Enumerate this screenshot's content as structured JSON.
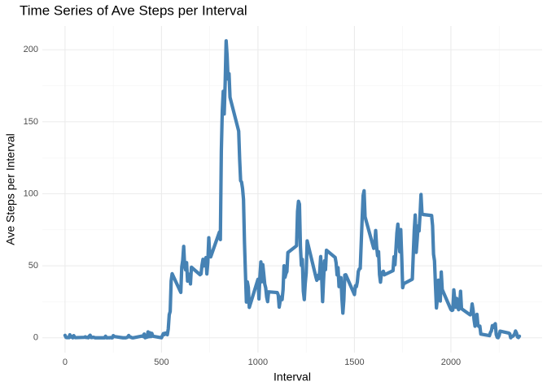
{
  "chart_data": {
    "type": "line",
    "title": "Time Series of Ave Steps per Interval",
    "xlabel": "Interval",
    "ylabel": "Ave Steps per Interval",
    "color": "#4682b4",
    "grid": true,
    "xlim": [
      -117.75,
      2472.75
    ],
    "ylim": [
      -10.3,
      216.5
    ],
    "xticks": [
      0,
      500,
      1000,
      1500,
      2000
    ],
    "yticks": [
      0,
      50,
      100,
      150,
      200
    ],
    "xminor": [
      250,
      750,
      1250,
      1750,
      2250
    ],
    "yminor": [
      25,
      75,
      125,
      175
    ],
    "x": [
      0,
      5,
      10,
      15,
      20,
      25,
      30,
      35,
      40,
      45,
      50,
      55,
      100,
      105,
      110,
      115,
      120,
      125,
      130,
      135,
      140,
      145,
      150,
      155,
      200,
      205,
      210,
      215,
      220,
      225,
      230,
      235,
      240,
      245,
      250,
      255,
      300,
      305,
      310,
      315,
      320,
      325,
      330,
      335,
      340,
      345,
      350,
      355,
      400,
      405,
      410,
      415,
      420,
      425,
      430,
      435,
      440,
      445,
      450,
      455,
      500,
      505,
      510,
      515,
      520,
      525,
      530,
      535,
      540,
      545,
      550,
      555,
      600,
      605,
      610,
      615,
      620,
      625,
      630,
      635,
      640,
      645,
      650,
      655,
      700,
      705,
      710,
      715,
      720,
      725,
      730,
      735,
      740,
      745,
      750,
      755,
      800,
      805,
      810,
      815,
      820,
      825,
      830,
      835,
      840,
      845,
      850,
      855,
      900,
      905,
      910,
      915,
      920,
      925,
      930,
      935,
      940,
      945,
      950,
      955,
      1000,
      1005,
      1010,
      1015,
      1020,
      1025,
      1030,
      1035,
      1040,
      1045,
      1050,
      1055,
      1100,
      1105,
      1110,
      1115,
      1120,
      1125,
      1130,
      1135,
      1140,
      1145,
      1150,
      1155,
      1200,
      1205,
      1210,
      1215,
      1220,
      1225,
      1230,
      1235,
      1240,
      1245,
      1250,
      1255,
      1300,
      1305,
      1310,
      1315,
      1320,
      1325,
      1330,
      1335,
      1340,
      1345,
      1350,
      1355,
      1400,
      1405,
      1410,
      1415,
      1420,
      1425,
      1430,
      1435,
      1440,
      1445,
      1450,
      1455,
      1500,
      1505,
      1510,
      1515,
      1520,
      1525,
      1530,
      1535,
      1540,
      1545,
      1550,
      1555,
      1600,
      1605,
      1610,
      1615,
      1620,
      1625,
      1630,
      1635,
      1640,
      1645,
      1650,
      1655,
      1700,
      1705,
      1710,
      1715,
      1720,
      1725,
      1730,
      1735,
      1740,
      1745,
      1750,
      1755,
      1800,
      1805,
      1810,
      1815,
      1820,
      1825,
      1830,
      1835,
      1840,
      1845,
      1850,
      1855,
      1900,
      1905,
      1910,
      1915,
      1920,
      1925,
      1930,
      1935,
      1940,
      1945,
      1950,
      1955,
      2000,
      2005,
      2010,
      2015,
      2020,
      2025,
      2030,
      2035,
      2040,
      2045,
      2050,
      2055,
      2100,
      2105,
      2110,
      2115,
      2120,
      2125,
      2130,
      2135,
      2140,
      2145,
      2150,
      2155,
      2200,
      2205,
      2210,
      2215,
      2220,
      2225,
      2230,
      2235,
      2240,
      2245,
      2250,
      2255,
      2300,
      2305,
      2310,
      2315,
      2320,
      2325,
      2330,
      2335,
      2340,
      2345,
      2350,
      2355
    ],
    "values": [
      1.7,
      0.3,
      0.1,
      0.2,
      0.1,
      2.1,
      0.5,
      0.9,
      0,
      1.5,
      0.3,
      0.1,
      0.3,
      0.7,
      0.2,
      0.3,
      0,
      1.1,
      1.8,
      0.2,
      0.2,
      0.4,
      0.3,
      0,
      0,
      0,
      1.1,
      0,
      0,
      0.1,
      0,
      0.2,
      0,
      0,
      1.5,
      0.9,
      0,
      0,
      0,
      0,
      0.2,
      0.6,
      1.6,
      0.6,
      0.5,
      0.1,
      0,
      0,
      1.2,
      0.9,
      2.6,
      0,
      0.3,
      0.4,
      4.1,
      0.7,
      3.5,
      0.8,
      3.1,
      1.1,
      0,
      1.6,
      3,
      2.2,
      3.3,
      3,
      2.1,
      6.1,
      16,
      18.3,
      39.5,
      44.5,
      31.5,
      49.3,
      53.8,
      63.5,
      50,
      47.1,
      52.2,
      39.3,
      44,
      44.2,
      37.4,
      49,
      43.8,
      44.4,
      50.5,
      54.5,
      49.9,
      51,
      55.7,
      44.3,
      52.3,
      69.5,
      57.8,
      56.2,
      73.4,
      68.2,
      129.4,
      157.5,
      171.2,
      155.4,
      177.3,
      206.2,
      195.9,
      179.6,
      183.4,
      167,
      143.5,
      124,
      109.1,
      108.1,
      103.7,
      96,
      66.2,
      45.2,
      24.8,
      38.8,
      35,
      21.1,
      40.6,
      27,
      42.4,
      52.7,
      38.9,
      50.8,
      44.3,
      37.4,
      34.7,
      28.3,
      25.1,
      31.9,
      31.4,
      29.7,
      21.3,
      25.5,
      28.4,
      26.5,
      33.4,
      50,
      42,
      44.6,
      46,
      59.2,
      63.9,
      87.7,
      94.8,
      92.8,
      63.4,
      50.2,
      54.5,
      32.4,
      26.5,
      37.7,
      45.1,
      67.3,
      42.3,
      39.9,
      43.3,
      41,
      46.2,
      56.4,
      42.8,
      25.1,
      40,
      53.5,
      47.3,
      60.8,
      55.8,
      52,
      43.6,
      48.7,
      35.5,
      37.5,
      41.8,
      27.5,
      17.1,
      26.1,
      43.6,
      43.8,
      30,
      36.1,
      35.5,
      38.8,
      46,
      47.8,
      48.1,
      65.3,
      82.9,
      98.7,
      102.1,
      84,
      62.1,
      64.1,
      74.5,
      63.2,
      56.9,
      59.8,
      43.9,
      38.6,
      44.7,
      45.5,
      46.2,
      43.7,
      46.6,
      56.3,
      50.7,
      61.2,
      72.7,
      78.9,
      68.9,
      59.7,
      75.1,
      56.5,
      34.8,
      37.5,
      40.7,
      58,
      74.7,
      85.3,
      59.3,
      67.8,
      77.7,
      74.2,
      85.3,
      99.5,
      86.6,
      85.6,
      84.9,
      77.8,
      58,
      53.4,
      36.3,
      20.7,
      27.4,
      40,
      30.2,
      25.5,
      45.7,
      33.5,
      19.6,
      19,
      19.3,
      33.3,
      26.8,
      21.2,
      27.3,
      21.3,
      19.5,
      21.3,
      32.3,
      20.2,
      15.9,
      17.2,
      23.5,
      19.2,
      12.5,
      8,
      14.7,
      16.3,
      8.7,
      7.8,
      8.1,
      2.6,
      1.5,
      3.7,
      4.8,
      8.5,
      7.1,
      8.7,
      9.8,
      2.2,
      0.3,
      0.1,
      1.6,
      4.6,
      3.3,
      2.8,
      0,
      0.8,
      1,
      1.6,
      2.6,
      4.7,
      3.3,
      0.6,
      0.2,
      1.1
    ]
  }
}
